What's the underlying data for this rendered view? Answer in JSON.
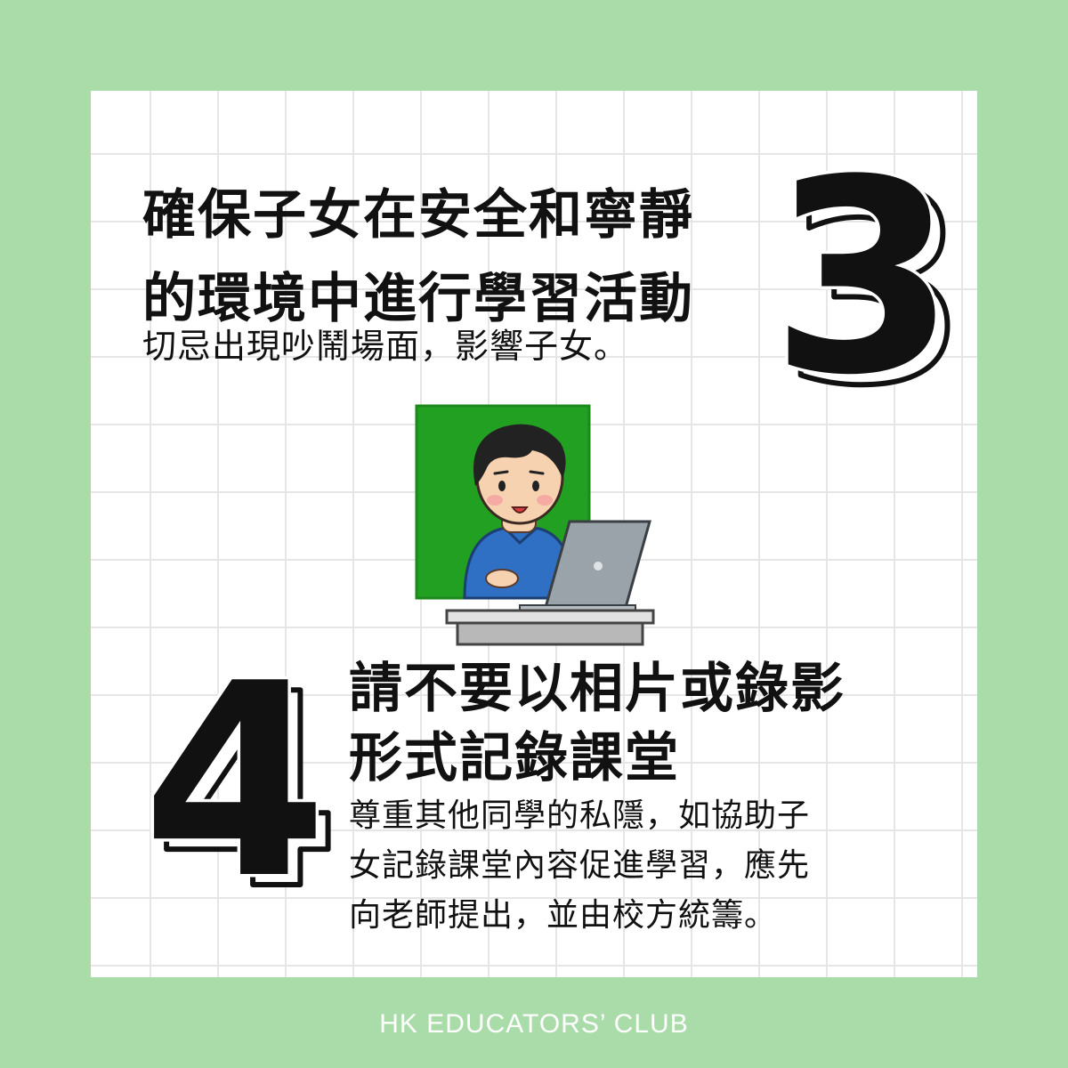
{
  "tip3": {
    "number": "3",
    "title_line1": "確保子女在安全和寧靜",
    "title_line2": "的環境中進行學習活動",
    "description": "切忌出現吵鬧場面，影響子女。"
  },
  "tip4": {
    "number": "4",
    "title_line1": "請不要以相片或錄影",
    "title_line2": "形式記錄課堂",
    "description_line1": "尊重其他同學的私隱，如協助子",
    "description_line2": "女記錄課堂內容促進學習，應先",
    "description_line3": "向老師提出，並由校方統籌。"
  },
  "illustration": "person-at-laptop-green-screen",
  "footer": {
    "brand": "HK EDUCATORS’ CLUB"
  },
  "colors": {
    "frame": "#aadcaa",
    "card": "#ffffff",
    "grid": "#e6e6e6",
    "text": "#111111",
    "green_screen": "#22a022",
    "footer_text": "#ffffff"
  }
}
